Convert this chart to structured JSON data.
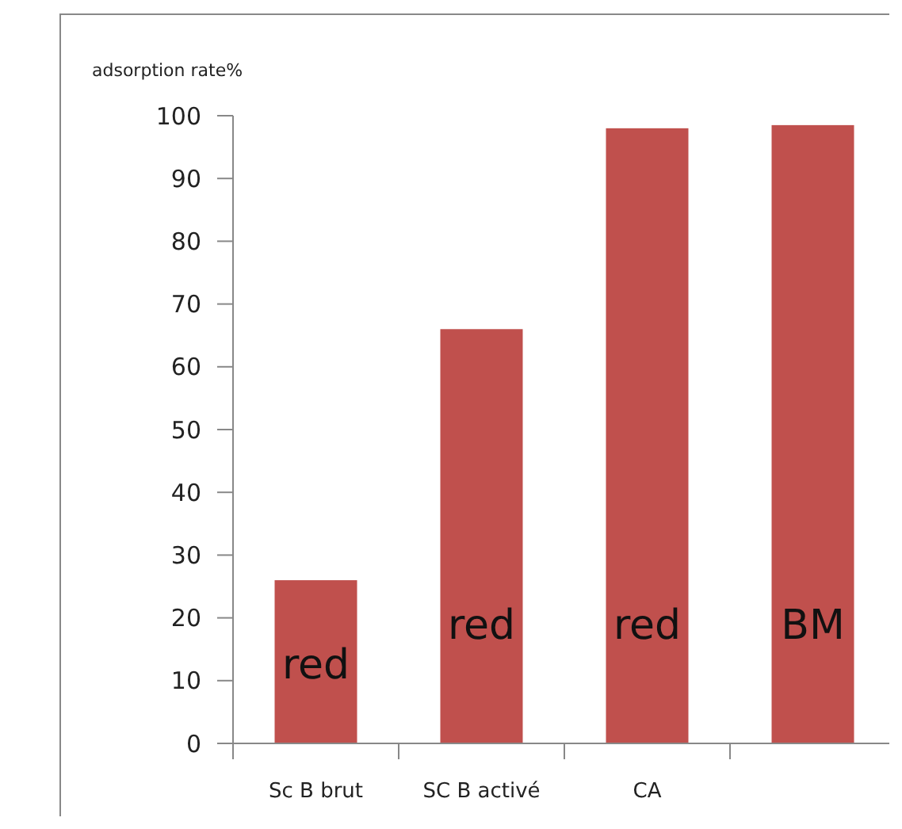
{
  "chart_data": {
    "type": "bar",
    "ylabel": "adsorption rate%",
    "categories": [
      "Sc B brut",
      "SC B activé",
      "CA",
      null
    ],
    "values": [
      26,
      66,
      98,
      98.5
    ],
    "color": "#c0504d",
    "ylim": [
      0,
      100
    ],
    "yticks": [
      0,
      10,
      20,
      30,
      40,
      50,
      60,
      70,
      80,
      90,
      100
    ],
    "grid": false,
    "annotations": [
      "red",
      "red",
      "red",
      "BM"
    ]
  }
}
